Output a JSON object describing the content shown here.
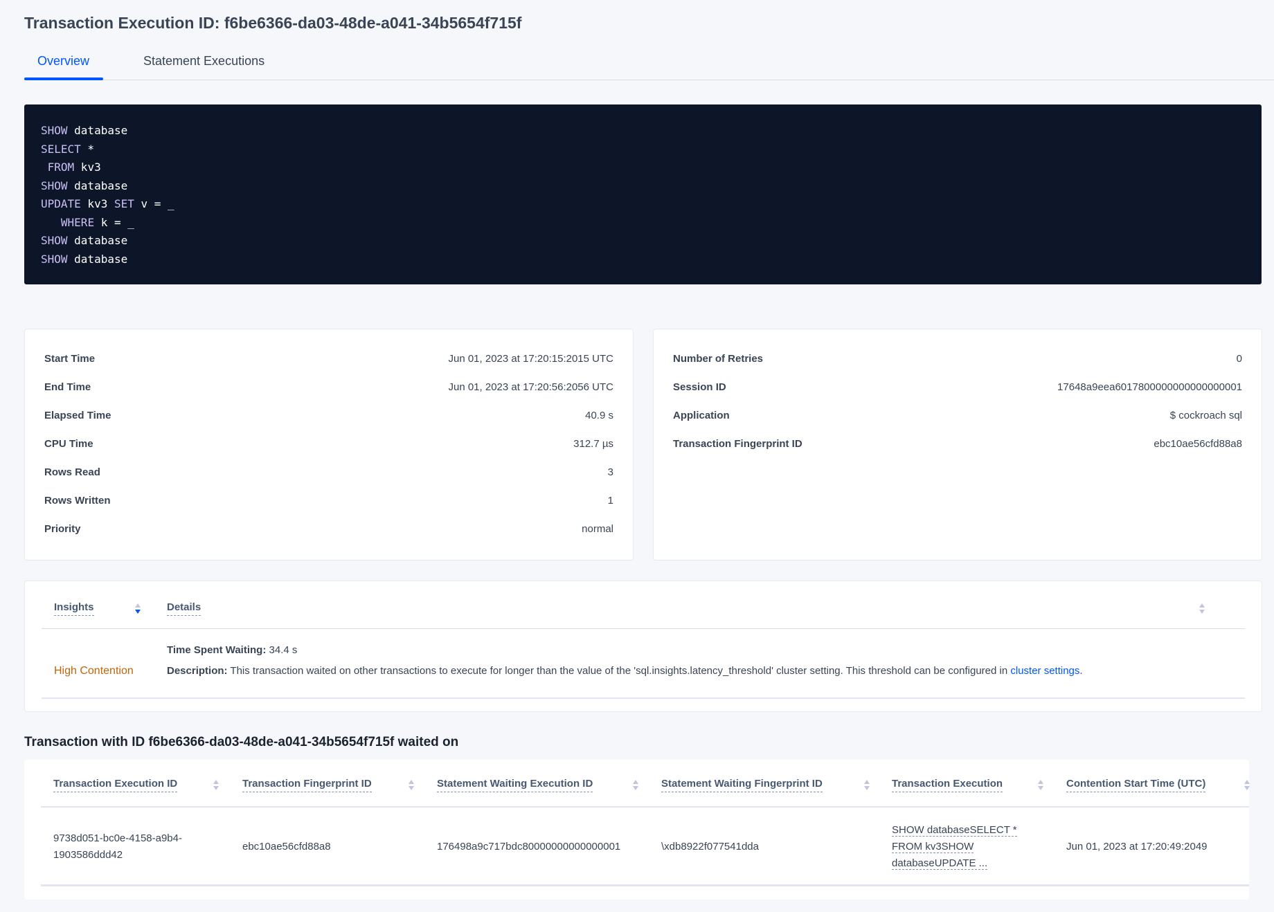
{
  "title": "Transaction Execution ID: f6be6366-da03-48de-a041-34b5654f715f",
  "tabs": [
    {
      "label": "Overview",
      "active": true
    },
    {
      "label": "Statement Executions",
      "active": false
    }
  ],
  "colors": {
    "accent": "#0055ff",
    "code_bg": "#0d1629",
    "insight": "#c0640d"
  },
  "code_lines": [
    [
      {
        "k": "SHOW"
      },
      {
        "t": " database"
      }
    ],
    [
      {
        "k": "SELECT"
      },
      {
        "t": " *"
      }
    ],
    [
      {
        "t": " "
      },
      {
        "k": "FROM"
      },
      {
        "t": " kv3"
      }
    ],
    [
      {
        "k": "SHOW"
      },
      {
        "t": " database"
      }
    ],
    [
      {
        "k": "UPDATE"
      },
      {
        "t": " kv3 "
      },
      {
        "k": "SET"
      },
      {
        "t": " v = _"
      }
    ],
    [
      {
        "t": "   "
      },
      {
        "k": "WHERE"
      },
      {
        "t": " k = _"
      }
    ],
    [
      {
        "k": "SHOW"
      },
      {
        "t": " database"
      }
    ],
    [
      {
        "k": "SHOW"
      },
      {
        "t": " database"
      }
    ]
  ],
  "summary_left": [
    {
      "label": "Start Time",
      "value": "Jun 01, 2023 at 17:20:15:2015 UTC"
    },
    {
      "label": "End Time",
      "value": "Jun 01, 2023 at 17:20:56:2056 UTC"
    },
    {
      "label": "Elapsed Time",
      "value": "40.9 s"
    },
    {
      "label": "CPU Time",
      "value": "312.7 µs"
    },
    {
      "label": "Rows Read",
      "value": "3"
    },
    {
      "label": "Rows Written",
      "value": "1"
    },
    {
      "label": "Priority",
      "value": "normal"
    }
  ],
  "summary_right": [
    {
      "label": "Number of Retries",
      "value": "0"
    },
    {
      "label": "Session ID",
      "value": "17648a9eea6017800000000000000001"
    },
    {
      "label": "Application",
      "value": "$ cockroach sql"
    },
    {
      "label": "Transaction Fingerprint ID",
      "value": "ebc10ae56cfd88a8"
    }
  ],
  "insights": {
    "headers": {
      "insights": "Insights",
      "details": "Details"
    },
    "row": {
      "type": "High Contention",
      "time_label": "Time Spent Waiting:",
      "time_value": " 34.4 s",
      "desc_label": "Description:",
      "desc_text": " This transaction waited on other transactions to execute for longer than the value of the 'sql.insights.latency_threshold' cluster setting. This threshold can be configured in ",
      "desc_link": "cluster settings",
      "desc_end": "."
    }
  },
  "waited_heading": "Transaction with ID f6be6366-da03-48de-a041-34b5654f715f waited on",
  "waited_table": {
    "columns": [
      "Transaction Execution ID",
      "Transaction Fingerprint ID",
      "Statement Waiting Execution ID",
      "Statement Waiting Fingerprint ID",
      "Transaction Execution",
      "Contention Start Time (UTC)"
    ],
    "rows": [
      {
        "txn_exec_id_1": "9738d051-bc0e-4158-a9b4-",
        "txn_exec_id_2": "1903586ddd42",
        "txn_fp": "ebc10ae56cfd88a8",
        "stmt_exec": "176498a9c717bdc80000000000000001",
        "stmt_fp": "\\xdb8922f077541dda",
        "txn_exec_1": "SHOW databaseSELECT *",
        "txn_exec_2": "FROM kv3SHOW",
        "txn_exec_3": "databaseUPDATE ...",
        "start": "Jun 01, 2023 at 17:20:49:2049"
      }
    ]
  }
}
